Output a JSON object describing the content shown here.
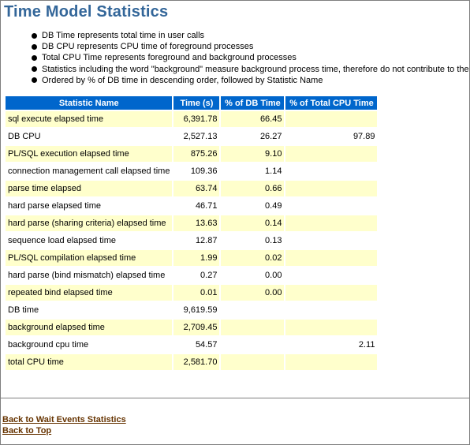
{
  "page": {
    "title": "Time Model Statistics"
  },
  "notes": [
    "DB Time represents total time in user calls",
    "DB CPU represents CPU time of foreground processes",
    "Total CPU Time represents foreground and background processes",
    "Statistics including the word \"background\" measure background process time, therefore do not contribute to the",
    "Ordered by % of DB time in descending order, followed by Statistic Name"
  ],
  "table": {
    "headers": [
      "Statistic Name",
      "Time (s)",
      "% of DB Time",
      "% of Total CPU Time"
    ],
    "rows": [
      [
        "sql execute elapsed time",
        "6,391.78",
        "66.45",
        ""
      ],
      [
        "DB CPU",
        "2,527.13",
        "26.27",
        "97.89"
      ],
      [
        "PL/SQL execution elapsed time",
        "875.26",
        "9.10",
        ""
      ],
      [
        "connection management call elapsed time",
        "109.36",
        "1.14",
        ""
      ],
      [
        "parse time elapsed",
        "63.74",
        "0.66",
        ""
      ],
      [
        "hard parse elapsed time",
        "46.71",
        "0.49",
        ""
      ],
      [
        "hard parse (sharing criteria) elapsed time",
        "13.63",
        "0.14",
        ""
      ],
      [
        "sequence load elapsed time",
        "12.87",
        "0.13",
        ""
      ],
      [
        "PL/SQL compilation elapsed time",
        "1.99",
        "0.02",
        ""
      ],
      [
        "hard parse (bind mismatch) elapsed time",
        "0.27",
        "0.00",
        ""
      ],
      [
        "repeated bind elapsed time",
        "0.01",
        "0.00",
        ""
      ],
      [
        "DB time",
        "9,619.59",
        "",
        ""
      ],
      [
        "background elapsed time",
        "2,709.45",
        "",
        ""
      ],
      [
        "background cpu time",
        "54.57",
        "",
        "2.11"
      ],
      [
        "total CPU time",
        "2,581.70",
        "",
        ""
      ]
    ]
  },
  "links": {
    "wait_events": "Back to Wait Events Statistics",
    "top": "Back to Top"
  }
}
